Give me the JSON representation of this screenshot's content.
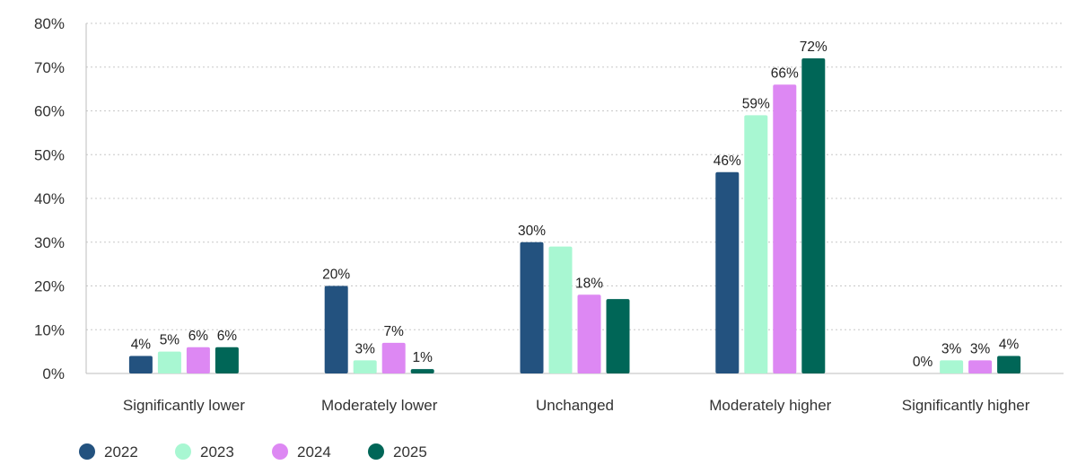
{
  "chart_data": {
    "type": "bar",
    "categories": [
      "Significantly lower",
      "Moderately lower",
      "Unchanged",
      "Moderately higher",
      "Significantly higher"
    ],
    "series": [
      {
        "name": "2022",
        "color": "#23527f",
        "values": [
          4,
          20,
          30,
          46,
          0
        ],
        "labels": [
          "4%",
          "20%",
          "30%",
          "46%",
          "0%"
        ]
      },
      {
        "name": "2023",
        "color": "#a8f7d2",
        "values": [
          5,
          3,
          29,
          59,
          3
        ],
        "labels": [
          "5%",
          "3%",
          "",
          "59%",
          "3%"
        ]
      },
      {
        "name": "2024",
        "color": "#dd88f3",
        "values": [
          6,
          7,
          18,
          66,
          3
        ],
        "labels": [
          "6%",
          "7%",
          "18%",
          "66%",
          "3%"
        ]
      },
      {
        "name": "2025",
        "color": "#006657",
        "values": [
          6,
          1,
          17,
          72,
          4
        ],
        "labels": [
          "6%",
          "1%",
          "",
          "72%",
          "4%"
        ]
      }
    ],
    "y_ticks": [
      "0%",
      "10%",
      "20%",
      "30%",
      "40%",
      "50%",
      "60%",
      "70%",
      "80%"
    ],
    "ylim": [
      0,
      80
    ],
    "grid": true,
    "legend_position": "bottom-left"
  }
}
